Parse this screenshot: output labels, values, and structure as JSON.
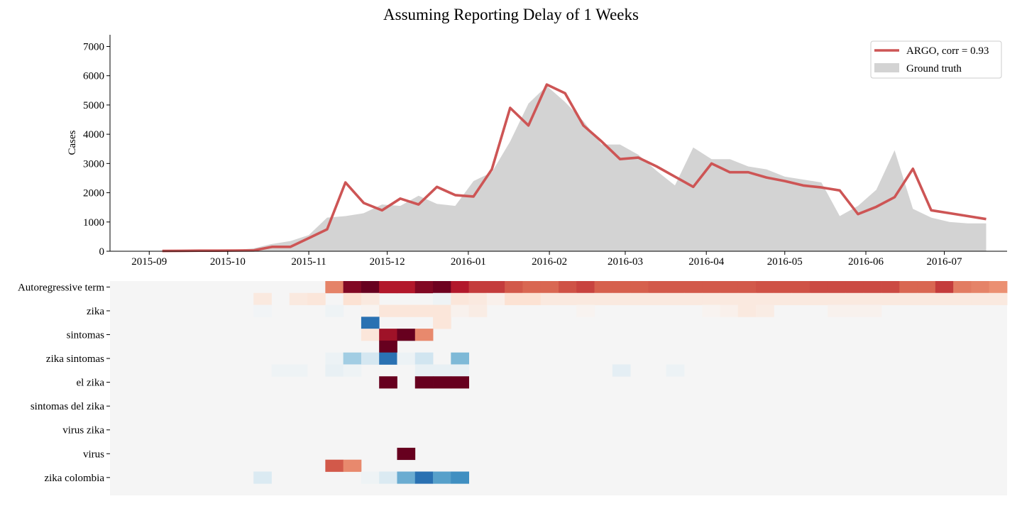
{
  "title": "Assuming Reporting Delay of 1 Weeks",
  "chart_data": [
    {
      "type": "line",
      "title": "Assuming Reporting Delay of 1 Weeks",
      "xlabel": "",
      "ylabel": "Cases",
      "xlim": [
        "2015-08-17",
        "2016-07-25"
      ],
      "ylim": [
        0,
        7400
      ],
      "yticks": [
        0,
        1000,
        2000,
        3000,
        4000,
        5000,
        6000,
        7000
      ],
      "xticks": [
        "2015-09",
        "2015-10",
        "2015-11",
        "2015-12",
        "2016-01",
        "2016-02",
        "2016-03",
        "2016-04",
        "2016-05",
        "2016-06",
        "2016-07"
      ],
      "grid": false,
      "legend": {
        "position": "top-right",
        "entries": [
          "ARGO, corr = 0.93",
          "Ground truth"
        ]
      },
      "colors": {
        "argo": "#cd5555",
        "ground_truth": "#d3d3d3"
      },
      "series": [
        {
          "name": "Ground truth",
          "kind": "area",
          "x": [
            "2015-09-06",
            "2015-09-13",
            "2015-09-20",
            "2015-09-27",
            "2015-10-04",
            "2015-10-11",
            "2015-10-18",
            "2015-10-25",
            "2015-11-01",
            "2015-11-08",
            "2015-11-15",
            "2015-11-22",
            "2015-11-29",
            "2015-12-06",
            "2015-12-13",
            "2015-12-20",
            "2015-12-27",
            "2016-01-03",
            "2016-01-10",
            "2016-01-17",
            "2016-01-24",
            "2016-01-31",
            "2016-02-07",
            "2016-02-14",
            "2016-02-21",
            "2016-02-28",
            "2016-03-06",
            "2016-03-13",
            "2016-03-20",
            "2016-03-27",
            "2016-04-03",
            "2016-04-10",
            "2016-04-17",
            "2016-04-24",
            "2016-05-01",
            "2016-05-08",
            "2016-05-15",
            "2016-05-22",
            "2016-05-29",
            "2016-06-05",
            "2016-06-12",
            "2016-06-19",
            "2016-06-26",
            "2016-07-03",
            "2016-07-10",
            "2016-07-17"
          ],
          "values": [
            0,
            5,
            10,
            20,
            40,
            100,
            250,
            350,
            550,
            1150,
            1200,
            1300,
            1600,
            1550,
            1900,
            1620,
            1550,
            2400,
            2700,
            3750,
            5050,
            5650,
            5100,
            4450,
            3650,
            3650,
            3300,
            2750,
            2250,
            3550,
            3150,
            3150,
            2900,
            2800,
            2550,
            2450,
            2350,
            1200,
            1550,
            2100,
            3450,
            1450,
            1150,
            1000,
            950,
            950
          ]
        },
        {
          "name": "ARGO, corr = 0.93",
          "kind": "line",
          "x": [
            "2015-09-06",
            "2015-09-13",
            "2015-09-20",
            "2015-09-27",
            "2015-10-04",
            "2015-10-11",
            "2015-10-18",
            "2015-10-25",
            "2015-11-01",
            "2015-11-08",
            "2015-11-15",
            "2015-11-22",
            "2015-11-29",
            "2015-12-06",
            "2015-12-13",
            "2015-12-20",
            "2015-12-27",
            "2016-01-03",
            "2016-01-10",
            "2016-01-17",
            "2016-01-24",
            "2016-01-31",
            "2016-02-07",
            "2016-02-14",
            "2016-02-21",
            "2016-02-28",
            "2016-03-06",
            "2016-03-13",
            "2016-03-20",
            "2016-03-27",
            "2016-04-03",
            "2016-04-10",
            "2016-04-17",
            "2016-04-24",
            "2016-05-01",
            "2016-05-08",
            "2016-05-15",
            "2016-05-22",
            "2016-05-29",
            "2016-06-05",
            "2016-06-12",
            "2016-06-19",
            "2016-06-26",
            "2016-07-03",
            "2016-07-10",
            "2016-07-17"
          ],
          "values": [
            10,
            15,
            20,
            20,
            25,
            30,
            150,
            150,
            450,
            750,
            2350,
            1650,
            1400,
            1800,
            1600,
            2200,
            1920,
            1870,
            2800,
            4900,
            4300,
            5700,
            5400,
            4300,
            3750,
            3150,
            3200,
            2900,
            2550,
            2200,
            3000,
            2700,
            2700,
            2520,
            2400,
            2250,
            2180,
            2080,
            1270,
            1520,
            1850,
            2820,
            1400,
            1300,
            1200,
            1100
          ]
        }
      ]
    },
    {
      "type": "heatmap",
      "title": "",
      "rows": [
        "Autoregressive term",
        "",
        "zika",
        "",
        "sintomas",
        "",
        "zika sintomas",
        "",
        "el zika",
        "",
        "sintomas del zika",
        "",
        "virus zika",
        "",
        "virus",
        "",
        "zika colombia",
        ""
      ],
      "columns": 50,
      "background": "#f5f5f5",
      "cells": [
        [
          0,
          0,
          0,
          0,
          0,
          0,
          0,
          0,
          0,
          0,
          0,
          0,
          0.5,
          0.93,
          1,
          0.8,
          0.8,
          0.93,
          0.98,
          0.8,
          0.7,
          0.7,
          0.62,
          0.58,
          0.58,
          0.64,
          0.68,
          0.6,
          0.6,
          0.6,
          0.62,
          0.62,
          0.62,
          0.62,
          0.62,
          0.62,
          0.64,
          0.64,
          0.64,
          0.66,
          0.66,
          0.66,
          0.66,
          0.66,
          0.58,
          0.58,
          0.7,
          0.52,
          0.5,
          0.46
        ],
        [
          0,
          0,
          0,
          0,
          0,
          0,
          0,
          0,
          0.1,
          0,
          0.1,
          0.12,
          0,
          0.15,
          0.1,
          0,
          0,
          0,
          -0.05,
          0.12,
          0.1,
          0.05,
          0.15,
          0.15,
          0.1,
          0.1,
          0.1,
          0.1,
          0.1,
          0.1,
          0.1,
          0.1,
          0.1,
          0.1,
          0.1,
          0.1,
          0.1,
          0.1,
          0.1,
          0.1,
          0.1,
          0.1,
          0.1,
          0.1,
          0.1,
          0.1,
          0.1,
          0.1,
          0.1,
          0.1
        ],
        [
          0,
          0,
          0,
          0,
          0,
          0,
          0,
          0,
          -0.03,
          0,
          0,
          0,
          -0.05,
          0,
          0.03,
          0.12,
          0.12,
          0.12,
          0.12,
          0.04,
          0.08,
          0,
          0,
          0,
          0,
          0,
          0.03,
          0,
          0,
          0,
          0,
          0,
          0,
          0.03,
          0.05,
          0.1,
          0.08,
          0,
          0,
          0,
          0.04,
          0.04,
          0.04,
          0,
          0,
          0,
          0,
          0,
          0,
          0
        ],
        [
          0,
          0,
          0,
          0,
          0,
          0,
          0,
          0,
          0,
          0,
          0,
          0,
          0,
          0,
          -0.75,
          0,
          0,
          0,
          0.12,
          0,
          0,
          0,
          0,
          0,
          0,
          0,
          0,
          0,
          0,
          0,
          0,
          0,
          0,
          0,
          0,
          0,
          0,
          0,
          0,
          0,
          0,
          0,
          0,
          0,
          0,
          0,
          0,
          0,
          0,
          0
        ],
        [
          0,
          0,
          0,
          0,
          0,
          0,
          0,
          0,
          0,
          0,
          0,
          0,
          0,
          0,
          0.12,
          0.85,
          1,
          0.48,
          0,
          0,
          0,
          0,
          0,
          0,
          0,
          0,
          0,
          0,
          0,
          0,
          0,
          0,
          0,
          0,
          0,
          0,
          0,
          0,
          0,
          0,
          0,
          0,
          0,
          0,
          0,
          0,
          0,
          0,
          0,
          0
        ],
        [
          0,
          0,
          0,
          0,
          0,
          0,
          0,
          0,
          0,
          0,
          0,
          0,
          0,
          0,
          0,
          1,
          0,
          0,
          0,
          0,
          0,
          0,
          0,
          0,
          0,
          0,
          0,
          0,
          0,
          0,
          0,
          0,
          0,
          0,
          0,
          0,
          0,
          0,
          0,
          0,
          0,
          0,
          0,
          0,
          0,
          0,
          0,
          0,
          0,
          0
        ],
        [
          0,
          0,
          0,
          0,
          0,
          0,
          0,
          0,
          0,
          0,
          0,
          0,
          -0.06,
          -0.35,
          -0.18,
          -0.75,
          -0.06,
          -0.2,
          0,
          -0.45,
          0,
          0,
          0,
          0,
          0,
          0,
          0,
          0,
          0,
          0,
          0,
          0,
          0,
          0,
          0,
          0,
          0,
          0,
          0,
          0,
          0,
          0,
          0,
          0,
          0,
          0,
          0,
          0,
          0,
          0
        ],
        [
          0,
          0,
          0,
          0,
          0,
          0,
          0,
          0,
          0,
          -0.05,
          -0.05,
          0,
          -0.08,
          -0.05,
          0,
          0,
          0,
          -0.08,
          -0.08,
          -0.08,
          0,
          0,
          0,
          0,
          0,
          0,
          0,
          0,
          -0.1,
          0,
          0,
          -0.06,
          0,
          0,
          0,
          0,
          0,
          0,
          0,
          0,
          0,
          0,
          0,
          0,
          0,
          0,
          0,
          0,
          0,
          0
        ],
        [
          0,
          0,
          0,
          0,
          0,
          0,
          0,
          0,
          0,
          0,
          0,
          0,
          0,
          0,
          0,
          1,
          0,
          1,
          1,
          1,
          0,
          0,
          0,
          0,
          0,
          0,
          0,
          0,
          0,
          0,
          0,
          0,
          0,
          0,
          0,
          0,
          0,
          0,
          0,
          0,
          0,
          0,
          0,
          0,
          0,
          0,
          0,
          0,
          0,
          0
        ],
        [
          0,
          0,
          0,
          0,
          0,
          0,
          0,
          0,
          0,
          0,
          0,
          0,
          0,
          0,
          0,
          0,
          0,
          0,
          0,
          0,
          0,
          0,
          0,
          0,
          0,
          0,
          0,
          0,
          0,
          0,
          0,
          0,
          0,
          0,
          0,
          0,
          0,
          0,
          0,
          0,
          0,
          0,
          0,
          0,
          0,
          0,
          0,
          0,
          0,
          0
        ],
        [
          0,
          0,
          0,
          0,
          0,
          0,
          0,
          0,
          0,
          0,
          0,
          0,
          0,
          0,
          0,
          0,
          0,
          0,
          0,
          0,
          0,
          0,
          0,
          0,
          0,
          0,
          0,
          0,
          0,
          0,
          0,
          0,
          0,
          0,
          0,
          0,
          0,
          0,
          0,
          0,
          0,
          0,
          0,
          0,
          0,
          0,
          0,
          0,
          0,
          0
        ],
        [
          0,
          0,
          0,
          0,
          0,
          0,
          0,
          0,
          0,
          0,
          0,
          0,
          0,
          0,
          0,
          0,
          0,
          0,
          0,
          0,
          0,
          0,
          0,
          0,
          0,
          0,
          0,
          0,
          0,
          0,
          0,
          0,
          0,
          0,
          0,
          0,
          0,
          0,
          0,
          0,
          0,
          0,
          0,
          0,
          0,
          0,
          0,
          0,
          0,
          0
        ],
        [
          0,
          0,
          0,
          0,
          0,
          0,
          0,
          0,
          0,
          0,
          0,
          0,
          0,
          0,
          0,
          0,
          0,
          0,
          0,
          0,
          0,
          0,
          0,
          0,
          0,
          0,
          0,
          0,
          0,
          0,
          0,
          0,
          0,
          0,
          0,
          0,
          0,
          0,
          0,
          0,
          0,
          0,
          0,
          0,
          0,
          0,
          0,
          0,
          0,
          0
        ],
        [
          0,
          0,
          0,
          0,
          0,
          0,
          0,
          0,
          0,
          0,
          0,
          0,
          0,
          0,
          0,
          0,
          0,
          0,
          0,
          0,
          0,
          0,
          0,
          0,
          0,
          0,
          0,
          0,
          0,
          0,
          0,
          0,
          0,
          0,
          0,
          0,
          0,
          0,
          0,
          0,
          0,
          0,
          0,
          0,
          0,
          0,
          0,
          0,
          0,
          0
        ],
        [
          0,
          0,
          0,
          0,
          0,
          0,
          0,
          0,
          0,
          0,
          0,
          0,
          0,
          0,
          0,
          0,
          1,
          0,
          0,
          0,
          0,
          0,
          0,
          0,
          0,
          0,
          0,
          0,
          0,
          0,
          0,
          0,
          0,
          0,
          0,
          0,
          0,
          0,
          0,
          0,
          0,
          0,
          0,
          0,
          0,
          0,
          0,
          0,
          0,
          0
        ],
        [
          0,
          0,
          0,
          0,
          0,
          0,
          0,
          0,
          0,
          0,
          0,
          0,
          0.62,
          0.48,
          0,
          0,
          0,
          0,
          0,
          0,
          0,
          0,
          0,
          0,
          0,
          0,
          0,
          0,
          0,
          0,
          0,
          0,
          0,
          0,
          0,
          0,
          0,
          0,
          0,
          0,
          0,
          0,
          0,
          0,
          0,
          0,
          0,
          0
        ],
        [
          0,
          0,
          0,
          0,
          0,
          0,
          0,
          0,
          -0.15,
          0,
          0,
          0,
          0,
          0,
          -0.05,
          -0.15,
          -0.5,
          -0.75,
          -0.55,
          -0.62,
          0,
          0,
          0,
          0,
          0,
          0,
          0,
          0,
          0,
          0,
          0,
          0,
          0,
          0,
          0,
          0,
          0,
          0,
          0,
          0,
          0,
          0,
          0,
          0,
          0,
          0,
          0,
          0,
          0,
          0
        ],
        [
          0,
          0,
          0,
          0,
          0,
          0,
          0,
          0,
          0,
          0,
          0,
          0,
          0,
          0,
          0,
          0,
          0,
          0,
          0,
          0,
          0,
          0,
          0,
          0,
          0,
          0,
          0,
          0,
          0,
          0,
          0,
          0,
          0,
          0,
          0,
          0,
          0,
          0,
          0,
          0,
          0,
          0,
          0,
          0,
          0,
          0,
          0,
          0,
          0,
          0
        ]
      ]
    }
  ]
}
